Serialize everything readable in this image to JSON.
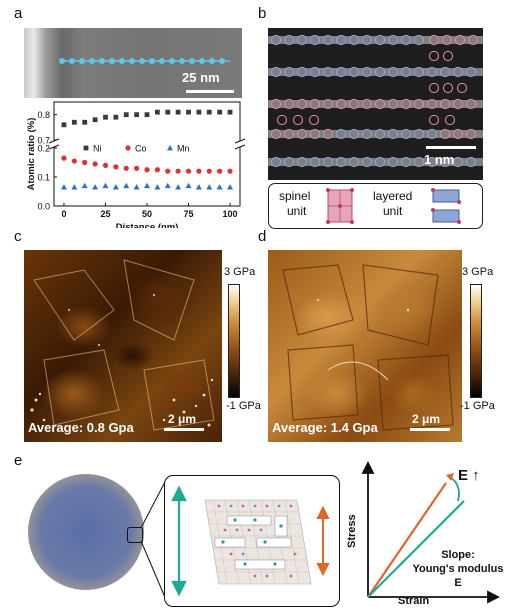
{
  "panels": {
    "a": {
      "label": "a",
      "scalebar": "25 nm",
      "chart_data": {
        "type": "scatter",
        "xlabel": "Distance (nm)",
        "ylabel": "Atomic ratio (%)",
        "xticks": [
          "0",
          "25",
          "50",
          "75",
          "100"
        ],
        "yticks_upper": [
          "0.7",
          "0.8"
        ],
        "yticks_lower": [
          "0.0",
          "0.1",
          "0.2"
        ],
        "legend": [
          "Ni",
          "Co",
          "Mn"
        ],
        "xlim": [
          -6,
          106
        ],
        "broken_axis": true,
        "x": [
          0,
          6.25,
          12.5,
          18.75,
          25,
          31.25,
          37.5,
          43.75,
          50,
          56.25,
          62.5,
          68.75,
          75,
          81.25,
          87.5,
          93.75,
          100
        ],
        "series": [
          {
            "name": "Ni",
            "color": "#3a3a3a",
            "marker": "square",
            "values": [
              0.76,
              0.77,
              0.77,
              0.78,
              0.79,
              0.79,
              0.8,
              0.8,
              0.8,
              0.81,
              0.81,
              0.81,
              0.81,
              0.81,
              0.81,
              0.81,
              0.81
            ]
          },
          {
            "name": "Co",
            "color": "#e03030",
            "marker": "circle",
            "values": [
              0.165,
              0.155,
              0.15,
              0.145,
              0.14,
              0.135,
              0.13,
              0.13,
              0.125,
              0.125,
              0.12,
              0.12,
              0.12,
              0.12,
              0.12,
              0.12,
              0.12
            ]
          },
          {
            "name": "Mn",
            "color": "#2a72c8",
            "marker": "triangle",
            "values": [
              0.065,
              0.065,
              0.07,
              0.065,
              0.07,
              0.065,
              0.07,
              0.065,
              0.07,
              0.065,
              0.07,
              0.065,
              0.07,
              0.065,
              0.065,
              0.065,
              0.065
            ]
          }
        ]
      }
    },
    "b": {
      "label": "b",
      "scalebar": "1 nm",
      "legend_spinel": "spinel\nunit",
      "legend_spinel_1": "spinel",
      "legend_spinel_2": "unit",
      "legend_layered_1": "layered",
      "legend_layered_2": "unit"
    },
    "c": {
      "label": "c",
      "average": "Average: 0.8 Gpa",
      "scalebar": "2 μm",
      "colorbar_max": "3 GPa",
      "colorbar_min": "-1 GPa"
    },
    "d": {
      "label": "d",
      "average": "Average: 1.4 Gpa",
      "scalebar": "2 μm",
      "colorbar_max": "3 GPa",
      "colorbar_min": "-1 GPa"
    },
    "e": {
      "label": "e",
      "graph": {
        "ylabel": "Stress",
        "xlabel": "Strain",
        "arrow_label": "E ↑",
        "slope_1": "Slope:",
        "slope_2": "Young's modulus E"
      }
    }
  },
  "colors": {
    "orange": "#e0662b",
    "teal": "#1fa893",
    "afm_dark": "#3a1a05",
    "afm_light": "#e6b066"
  }
}
